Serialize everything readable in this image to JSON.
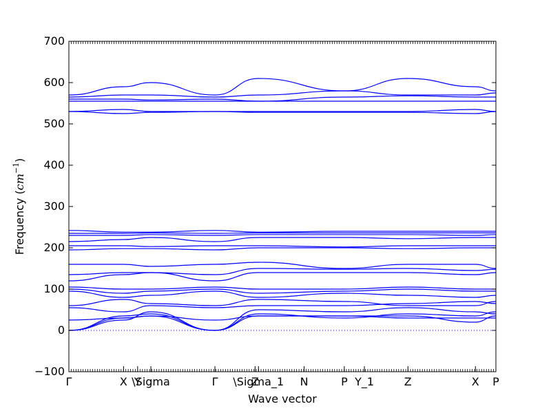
{
  "chart_data": {
    "type": "line",
    "xlabel": "Wave vector",
    "ylabel": "Frequency",
    "ylabel_unit_base": "cm",
    "ylabel_unit_exp": "−1",
    "ylim": [
      -100,
      700
    ],
    "yticks": [
      -100,
      0,
      100,
      200,
      300,
      400,
      500,
      600,
      700
    ],
    "xlim": [
      0,
      1
    ],
    "high_symmetry_points": [
      {
        "label": "Γ",
        "x": 0.0
      },
      {
        "label": "X",
        "x": 0.128
      },
      {
        "label": "Y",
        "x": 0.161
      },
      {
        "label": "\\Sigma",
        "x": 0.192
      },
      {
        "label": "Γ",
        "x": 0.342
      },
      {
        "label": "Z",
        "x": 0.436
      },
      {
        "label": "\\Sigma_1",
        "x": 0.444
      },
      {
        "label": "N",
        "x": 0.551
      },
      {
        "label": "P",
        "x": 0.645
      },
      {
        "label": "Y_1",
        "x": 0.692
      },
      {
        "label": "Z",
        "x": 0.794
      },
      {
        "label": "X",
        "x": 0.952
      },
      {
        "label": "P",
        "x": 1.0
      }
    ],
    "zero_line": 0,
    "line_color": "#0000ff",
    "series": [
      {
        "x": [
          0,
          0.128,
          0.192,
          0.342,
          0.444,
          0.645,
          0.794,
          0.952,
          1.0
        ],
        "y": [
          0,
          35,
          40,
          0,
          35,
          35,
          35,
          20,
          35
        ]
      },
      {
        "x": [
          0,
          0.128,
          0.192,
          0.342,
          0.444,
          0.645,
          0.794,
          0.952,
          1.0
        ],
        "y": [
          0,
          30,
          35,
          0,
          40,
          30,
          40,
          35,
          45
        ]
      },
      {
        "x": [
          0,
          0.128,
          0.192,
          0.342,
          0.444,
          0.645,
          0.794,
          0.952,
          1.0
        ],
        "y": [
          0,
          25,
          45,
          0,
          50,
          45,
          55,
          45,
          40
        ]
      },
      {
        "x": [
          0,
          0.128,
          0.192,
          0.342,
          0.444,
          0.645,
          0.794,
          0.952,
          1.0
        ],
        "y": [
          25,
          30,
          35,
          25,
          35,
          35,
          30,
          30,
          30
        ]
      },
      {
        "x": [
          0,
          0.128,
          0.192,
          0.342,
          0.444,
          0.645,
          0.794,
          0.952,
          1.0
        ],
        "y": [
          55,
          45,
          60,
          55,
          60,
          60,
          65,
          70,
          65
        ]
      },
      {
        "x": [
          0,
          0.128,
          0.192,
          0.342,
          0.444,
          0.645,
          0.794,
          0.952,
          1.0
        ],
        "y": [
          60,
          75,
          65,
          60,
          75,
          70,
          60,
          60,
          70
        ]
      },
      {
        "x": [
          0,
          0.128,
          0.192,
          0.342,
          0.444,
          0.645,
          0.794,
          0.952,
          1.0
        ],
        "y": [
          95,
          80,
          85,
          95,
          80,
          90,
          85,
          80,
          85
        ]
      },
      {
        "x": [
          0,
          0.128,
          0.192,
          0.342,
          0.444,
          0.645,
          0.794,
          0.952,
          1.0
        ],
        "y": [
          100,
          90,
          95,
          100,
          90,
          95,
          100,
          95,
          95
        ]
      },
      {
        "x": [
          0,
          0.128,
          0.192,
          0.342,
          0.444,
          0.645,
          0.794,
          0.952,
          1.0
        ],
        "y": [
          105,
          100,
          100,
          105,
          100,
          100,
          105,
          100,
          100
        ]
      },
      {
        "x": [
          0,
          0.128,
          0.192,
          0.342,
          0.444,
          0.645,
          0.794,
          0.952,
          1.0
        ],
        "y": [
          120,
          135,
          140,
          120,
          140,
          140,
          140,
          135,
          140
        ]
      },
      {
        "x": [
          0,
          0.128,
          0.192,
          0.342,
          0.444,
          0.645,
          0.794,
          0.952,
          1.0
        ],
        "y": [
          135,
          140,
          140,
          135,
          150,
          148,
          150,
          145,
          148
        ]
      },
      {
        "x": [
          0,
          0.128,
          0.192,
          0.342,
          0.444,
          0.645,
          0.794,
          0.952,
          1.0
        ],
        "y": [
          160,
          160,
          155,
          160,
          165,
          150,
          160,
          160,
          150
        ]
      },
      {
        "x": [
          0,
          0.128,
          0.192,
          0.342,
          0.444,
          0.645,
          0.794,
          0.952,
          1.0
        ],
        "y": [
          195,
          198,
          198,
          195,
          200,
          200,
          198,
          200,
          200
        ]
      },
      {
        "x": [
          0,
          0.128,
          0.192,
          0.342,
          0.444,
          0.645,
          0.794,
          0.952,
          1.0
        ],
        "y": [
          205,
          205,
          203,
          205,
          205,
          202,
          205,
          205,
          205
        ]
      },
      {
        "x": [
          0,
          0.128,
          0.192,
          0.342,
          0.444,
          0.645,
          0.794,
          0.952,
          1.0
        ],
        "y": [
          215,
          220,
          225,
          215,
          225,
          225,
          222,
          225,
          225
        ]
      },
      {
        "x": [
          0,
          0.128,
          0.192,
          0.342,
          0.444,
          0.645,
          0.794,
          0.952,
          1.0
        ],
        "y": [
          230,
          230,
          232,
          230,
          232,
          232,
          232,
          230,
          232
        ]
      },
      {
        "x": [
          0,
          0.128,
          0.192,
          0.342,
          0.444,
          0.645,
          0.794,
          0.952,
          1.0
        ],
        "y": [
          235,
          235,
          236,
          235,
          236,
          236,
          236,
          236,
          236
        ]
      },
      {
        "x": [
          0,
          0.128,
          0.192,
          0.342,
          0.444,
          0.645,
          0.794,
          0.952,
          1.0
        ],
        "y": [
          242,
          238,
          238,
          242,
          238,
          240,
          240,
          240,
          240
        ]
      },
      {
        "x": [
          0,
          0.128,
          0.192,
          0.342,
          0.444,
          0.645,
          0.794,
          0.952,
          1.0
        ],
        "y": [
          530,
          535,
          530,
          530,
          530,
          530,
          530,
          535,
          530
        ]
      },
      {
        "x": [
          0,
          0.128,
          0.192,
          0.342,
          0.444,
          0.645,
          0.794,
          0.952,
          1.0
        ],
        "y": [
          530,
          525,
          528,
          530,
          528,
          528,
          528,
          525,
          530
        ]
      },
      {
        "x": [
          0,
          0.128,
          0.192,
          0.342,
          0.444,
          0.645,
          0.794,
          0.952,
          1.0
        ],
        "y": [
          555,
          555,
          555,
          555,
          555,
          555,
          555,
          555,
          555
        ]
      },
      {
        "x": [
          0,
          0.128,
          0.192,
          0.342,
          0.444,
          0.645,
          0.794,
          0.952,
          1.0
        ],
        "y": [
          560,
          560,
          558,
          560,
          555,
          565,
          568,
          565,
          565
        ]
      },
      {
        "x": [
          0,
          0.128,
          0.192,
          0.342,
          0.444,
          0.645,
          0.794,
          0.952,
          1.0
        ],
        "y": [
          565,
          570,
          570,
          565,
          570,
          580,
          570,
          570,
          575
        ]
      },
      {
        "x": [
          0,
          0.128,
          0.192,
          0.342,
          0.444,
          0.645,
          0.794,
          0.952,
          1.0
        ],
        "y": [
          570,
          590,
          600,
          570,
          610,
          580,
          610,
          590,
          580
        ]
      }
    ]
  }
}
